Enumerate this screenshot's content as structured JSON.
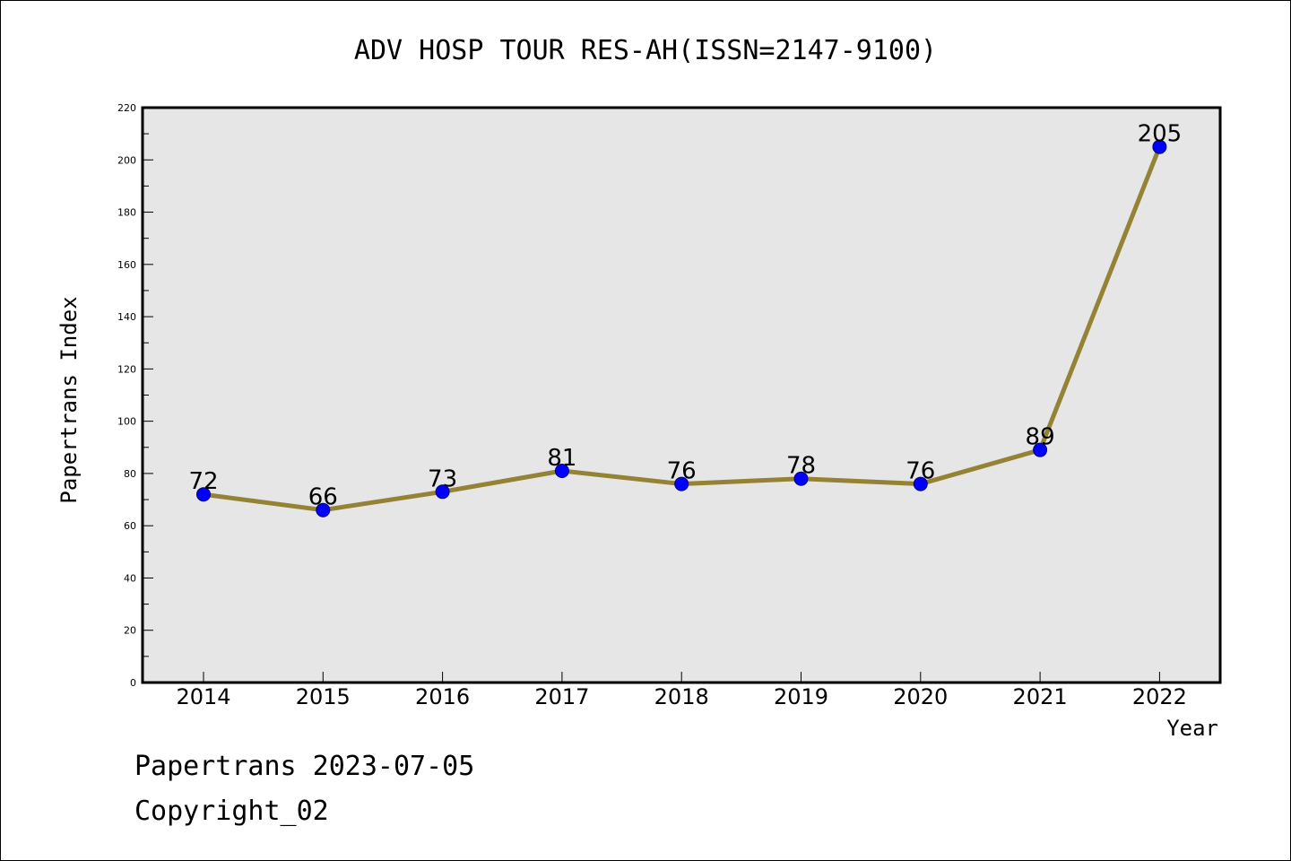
{
  "colors": {
    "line": "#948235",
    "marker": "#0000ff",
    "plot_bg": "#e6e6e6"
  },
  "chart_data": {
    "type": "line",
    "title": "ADV HOSP TOUR RES-AH(ISSN=2147-9100)",
    "xlabel": "Year",
    "ylabel": "Papertrans Index",
    "categories": [
      "2014",
      "2015",
      "2016",
      "2017",
      "2018",
      "2019",
      "2020",
      "2021",
      "2022"
    ],
    "series": [
      {
        "values": [
          72,
          66,
          73,
          81,
          76,
          78,
          76,
          89,
          205
        ]
      }
    ],
    "ylim": [
      0,
      220
    ],
    "yticks": [
      "0",
      "20",
      "40",
      "60",
      "80",
      "100",
      "120",
      "140",
      "160",
      "180",
      "200",
      "220"
    ],
    "data_labels": [
      "72",
      "66",
      "73",
      "81",
      "76",
      "78",
      "76",
      "89",
      "205"
    ],
    "grid": false,
    "legend": "none"
  },
  "footer": {
    "line1": "Papertrans 2023-07-05",
    "line2": "Copyright_02"
  }
}
